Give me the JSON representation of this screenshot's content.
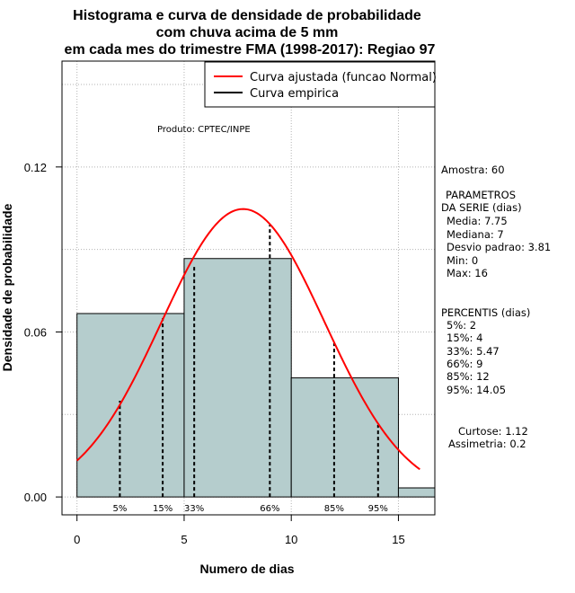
{
  "chart_data": {
    "type": "bar",
    "title": [
      "Histograma e curva de densidade de probabilidade",
      "com chuva acima de 5 mm",
      "em cada mes do trimestre FMA (1998-2017): Regiao 97"
    ],
    "xlabel": "Numero de dias",
    "ylabel": "Densidade de probabilidade",
    "xlim": [
      -0.7,
      16.7
    ],
    "ylim": [
      -0.0065,
      0.1585
    ],
    "xticks": [
      0,
      5,
      10,
      15
    ],
    "yticks": [
      0.0,
      0.06,
      0.12
    ],
    "ytick_labels": [
      "0.00",
      "0.06",
      "0.12"
    ],
    "grid": true,
    "bins": [
      {
        "from": 0,
        "to": 5,
        "density": 0.0667
      },
      {
        "from": 5,
        "to": 10,
        "density": 0.0867
      },
      {
        "from": 10,
        "to": 15,
        "density": 0.0433
      },
      {
        "from": 15,
        "to": 20,
        "density": 0.0033
      }
    ],
    "bar_color": "#b5cdcd",
    "normal_fit": {
      "mean": 7.75,
      "sd": 3.81,
      "x_from": 0,
      "x_to": 16,
      "color": "#ff0000"
    },
    "percentiles": [
      {
        "label": "5%",
        "x": 2,
        "density": 0.035
      },
      {
        "label": "15%",
        "x": 4,
        "density": 0.065
      },
      {
        "label": "33%",
        "x": 5.47,
        "density": 0.084
      },
      {
        "label": "66%",
        "x": 9,
        "density": 0.099
      },
      {
        "label": "85%",
        "x": 12,
        "density": 0.056
      },
      {
        "label": "95%",
        "x": 14.05,
        "density": 0.0262
      }
    ],
    "legend": {
      "position": "top-right",
      "entries": [
        {
          "label": "Curva ajustada (funcao Normal)",
          "color": "#ff0000"
        },
        {
          "label": "Curva empirica",
          "color": "#000000"
        }
      ]
    },
    "annotation": "Produto: CPTEC/INPE"
  },
  "side_panel": {
    "sample": "Amostra: 60",
    "params_header": "PARAMETROS",
    "params_subheader": "DA SERIE (dias)",
    "params": [
      "Media: 7.75",
      "Mediana: 7",
      "Desvio padrao: 3.81",
      "Min: 0",
      "Max: 16"
    ],
    "percentis_header": "PERCENTIS (dias)",
    "percentis": [
      "5%: 2",
      "15%: 4",
      "33%: 5.47",
      "66%: 9",
      "85%: 12",
      "95%: 14.05"
    ],
    "kurtosis": "Curtose: 1.12",
    "skewness": "Assimetria: 0.2"
  }
}
